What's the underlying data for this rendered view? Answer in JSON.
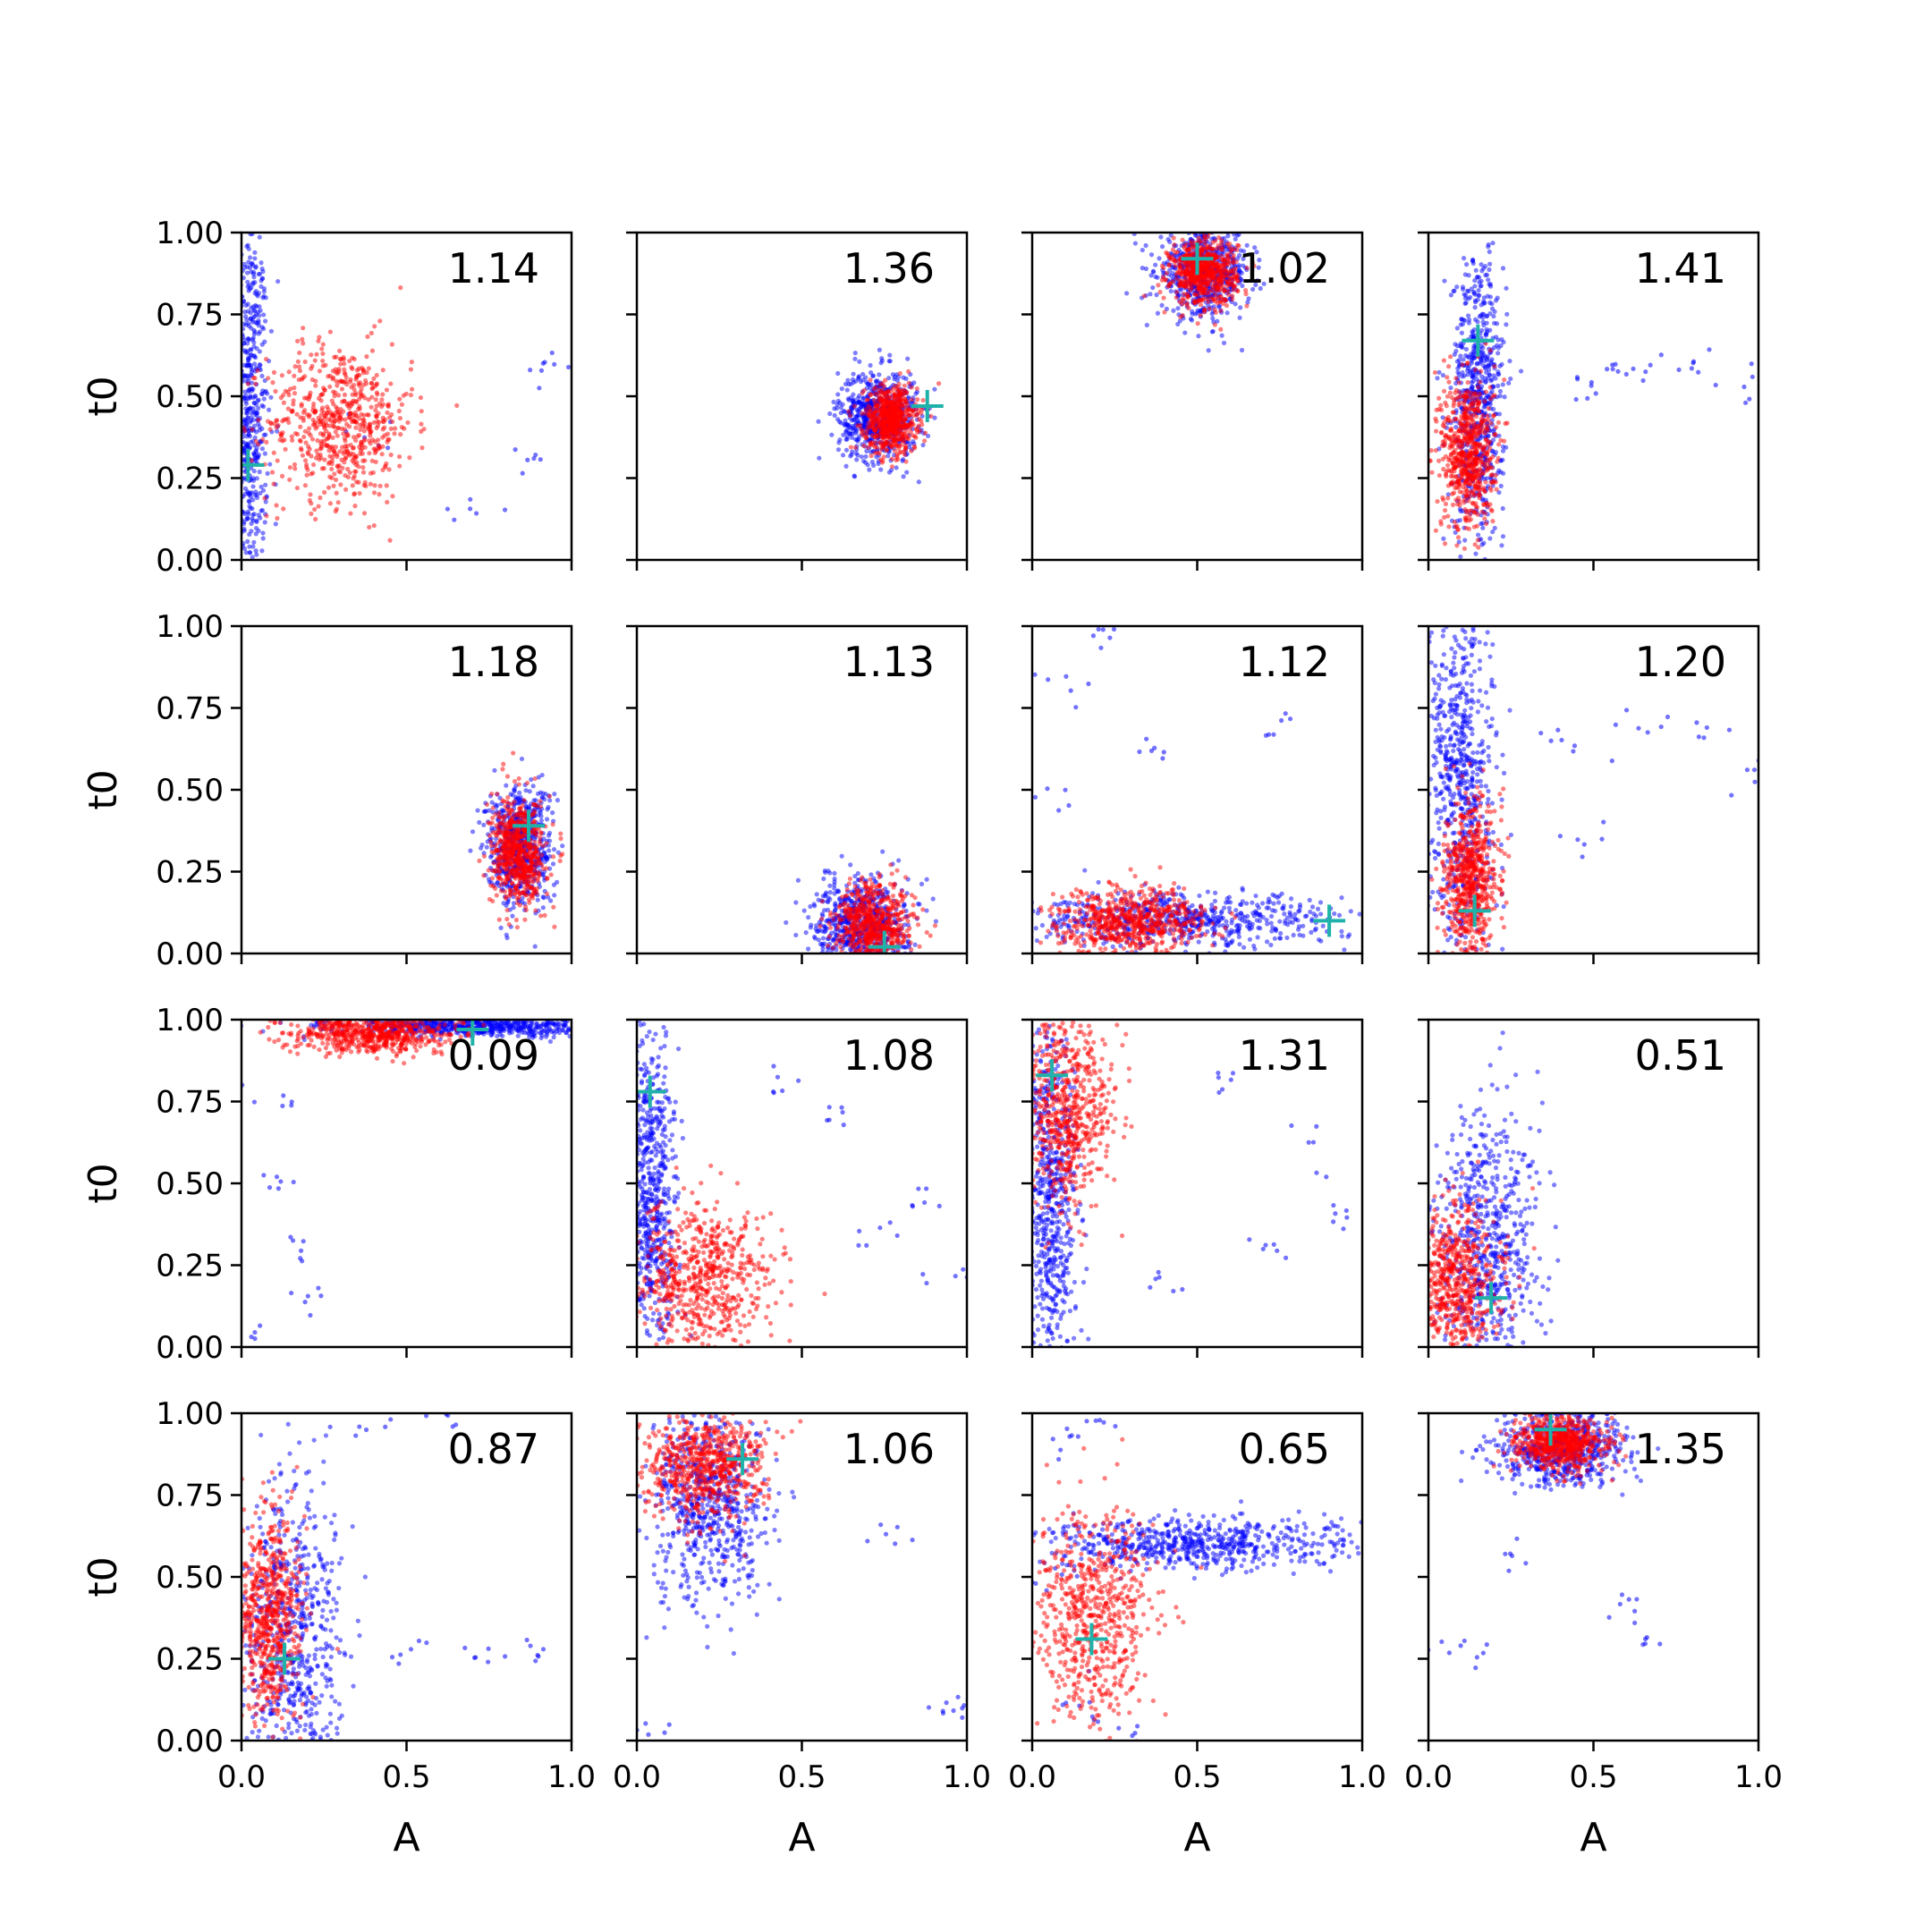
{
  "figure": {
    "xlabel": "A",
    "ylabel": "t0",
    "xlim": [
      0,
      1
    ],
    "ylim": [
      0,
      1
    ],
    "x_ticks": [
      "0.0",
      "0.5",
      "1.0"
    ],
    "x_tick_values": [
      0,
      0.5,
      1
    ],
    "y_ticks": [
      "0.00",
      "0.25",
      "0.50",
      "0.75",
      "1.00"
    ],
    "y_tick_values": [
      0,
      0.25,
      0.5,
      0.75,
      1
    ],
    "colors": {
      "series_blue": "#0000ff",
      "series_red": "#ff0000",
      "marker": "#20b2aa",
      "axes": "#000000"
    }
  },
  "chart_data": [
    {
      "type": "scatter",
      "row": 0,
      "col": 0,
      "value_label": "1.14",
      "marker": [
        0.02,
        0.29
      ],
      "blue": {
        "cx": 0.02,
        "cy": 0.45,
        "sx": 0.03,
        "sy": 0.3,
        "tail": [
          [
            0.4,
            0.4
          ],
          [
            0.92,
            0.6
          ],
          [
            0.7,
            0.15
          ],
          [
            0.98,
            0.55
          ],
          [
            0.85,
            0.3
          ]
        ]
      },
      "red": {
        "cx": 0.3,
        "cy": 0.42,
        "sx": 0.11,
        "sy": 0.12
      }
    },
    {
      "type": "scatter",
      "row": 0,
      "col": 1,
      "value_label": "1.36",
      "marker": [
        0.88,
        0.47
      ],
      "blue": {
        "cx": 0.73,
        "cy": 0.44,
        "sx": 0.06,
        "sy": 0.07,
        "tail": []
      },
      "red": {
        "cx": 0.77,
        "cy": 0.43,
        "sx": 0.04,
        "sy": 0.05
      }
    },
    {
      "type": "scatter",
      "row": 0,
      "col": 2,
      "value_label": "1.02",
      "marker": [
        0.5,
        0.92
      ],
      "blue": {
        "cx": 0.52,
        "cy": 0.88,
        "sx": 0.07,
        "sy": 0.07,
        "tail": []
      },
      "red": {
        "cx": 0.52,
        "cy": 0.88,
        "sx": 0.05,
        "sy": 0.05
      }
    },
    {
      "type": "scatter",
      "row": 0,
      "col": 3,
      "value_label": "1.41",
      "marker": [
        0.15,
        0.67
      ],
      "blue": {
        "cx": 0.15,
        "cy": 0.5,
        "sx": 0.04,
        "sy": 0.22,
        "tail": [
          [
            0.55,
            0.57
          ],
          [
            0.65,
            0.6
          ],
          [
            0.82,
            0.58
          ],
          [
            0.95,
            0.5
          ],
          [
            0.45,
            0.52
          ]
        ]
      },
      "red": {
        "cx": 0.12,
        "cy": 0.33,
        "sx": 0.04,
        "sy": 0.12
      }
    },
    {
      "type": "scatter",
      "row": 1,
      "col": 0,
      "value_label": "1.18",
      "marker": [
        0.87,
        0.39
      ],
      "blue": {
        "cx": 0.84,
        "cy": 0.33,
        "sx": 0.05,
        "sy": 0.09,
        "tail": []
      },
      "red": {
        "cx": 0.84,
        "cy": 0.31,
        "sx": 0.04,
        "sy": 0.08
      }
    },
    {
      "type": "scatter",
      "row": 1,
      "col": 1,
      "value_label": "1.13",
      "marker": [
        0.75,
        0.02
      ],
      "blue": {
        "cx": 0.68,
        "cy": 0.09,
        "sx": 0.07,
        "sy": 0.07,
        "tail": []
      },
      "red": {
        "cx": 0.72,
        "cy": 0.08,
        "sx": 0.06,
        "sy": 0.07
      }
    },
    {
      "type": "scatter",
      "row": 1,
      "col": 2,
      "value_label": "1.12",
      "marker": [
        0.9,
        0.1
      ],
      "blue": {
        "cx": 0.45,
        "cy": 0.1,
        "sx": 0.25,
        "sy": 0.04,
        "tail": [
          [
            0.1,
            0.8
          ],
          [
            0.2,
            0.95
          ],
          [
            0.35,
            0.6
          ],
          [
            0.75,
            0.7
          ],
          [
            0.05,
            0.45
          ]
        ]
      },
      "red": {
        "cx": 0.3,
        "cy": 0.1,
        "sx": 0.11,
        "sy": 0.05
      }
    },
    {
      "type": "scatter",
      "row": 1,
      "col": 3,
      "value_label": "1.20",
      "marker": [
        0.14,
        0.13
      ],
      "blue": {
        "cx": 0.1,
        "cy": 0.55,
        "sx": 0.05,
        "sy": 0.28,
        "tail": [
          [
            0.4,
            0.65
          ],
          [
            0.6,
            0.7
          ],
          [
            0.85,
            0.68
          ],
          [
            0.98,
            0.55
          ],
          [
            0.5,
            0.35
          ]
        ]
      },
      "red": {
        "cx": 0.13,
        "cy": 0.22,
        "sx": 0.04,
        "sy": 0.12
      }
    },
    {
      "type": "scatter",
      "row": 2,
      "col": 0,
      "value_label": "0.09",
      "marker": [
        0.7,
        0.97
      ],
      "blue": {
        "cx": 0.7,
        "cy": 0.98,
        "sx": 0.2,
        "sy": 0.015,
        "tail": [
          [
            0.12,
            0.5
          ],
          [
            0.15,
            0.3
          ],
          [
            0.08,
            0.75
          ],
          [
            0.2,
            0.15
          ],
          [
            0.05,
            0.02
          ]
        ]
      },
      "red": {
        "cx": 0.4,
        "cy": 0.96,
        "sx": 0.12,
        "sy": 0.03
      }
    },
    {
      "type": "scatter",
      "row": 2,
      "col": 1,
      "value_label": "1.08",
      "marker": [
        0.04,
        0.78
      ],
      "blue": {
        "cx": 0.04,
        "cy": 0.45,
        "sx": 0.04,
        "sy": 0.28,
        "tail": [
          [
            0.6,
            0.7
          ],
          [
            0.85,
            0.45
          ],
          [
            0.95,
            0.22
          ],
          [
            0.7,
            0.35
          ],
          [
            0.45,
            0.8
          ]
        ]
      },
      "red": {
        "cx": 0.2,
        "cy": 0.2,
        "sx": 0.11,
        "sy": 0.12
      }
    },
    {
      "type": "scatter",
      "row": 2,
      "col": 2,
      "value_label": "1.31",
      "marker": [
        0.06,
        0.83
      ],
      "blue": {
        "cx": 0.06,
        "cy": 0.45,
        "sx": 0.04,
        "sy": 0.3,
        "tail": [
          [
            0.6,
            0.8
          ],
          [
            0.85,
            0.6
          ],
          [
            0.95,
            0.4
          ],
          [
            0.4,
            0.2
          ],
          [
            0.7,
            0.3
          ]
        ]
      },
      "red": {
        "cx": 0.1,
        "cy": 0.72,
        "sx": 0.07,
        "sy": 0.14
      }
    },
    {
      "type": "scatter",
      "row": 2,
      "col": 3,
      "value_label": "0.51",
      "marker": [
        0.19,
        0.15
      ],
      "blue": {
        "cx": 0.18,
        "cy": 0.3,
        "sx": 0.08,
        "sy": 0.22,
        "tail": []
      },
      "red": {
        "cx": 0.08,
        "cy": 0.2,
        "sx": 0.07,
        "sy": 0.12
      }
    },
    {
      "type": "scatter",
      "row": 3,
      "col": 0,
      "value_label": "0.87",
      "marker": [
        0.13,
        0.25
      ],
      "blue": {
        "cx": 0.15,
        "cy": 0.3,
        "sx": 0.08,
        "sy": 0.25,
        "tail": [
          [
            0.5,
            0.27
          ],
          [
            0.75,
            0.26
          ],
          [
            0.9,
            0.26
          ],
          [
            0.6,
            0.97
          ],
          [
            0.35,
            0.97
          ]
        ]
      },
      "red": {
        "cx": 0.08,
        "cy": 0.38,
        "sx": 0.05,
        "sy": 0.16
      }
    },
    {
      "type": "scatter",
      "row": 3,
      "col": 1,
      "value_label": "1.06",
      "marker": [
        0.32,
        0.86
      ],
      "blue": {
        "cx": 0.22,
        "cy": 0.72,
        "sx": 0.09,
        "sy": 0.16,
        "tail": [
          [
            0.95,
            0.08
          ],
          [
            0.98,
            0.1
          ],
          [
            0.75,
            0.6
          ],
          [
            0.05,
            0.02
          ]
        ]
      },
      "red": {
        "cx": 0.2,
        "cy": 0.83,
        "sx": 0.09,
        "sy": 0.08
      }
    },
    {
      "type": "scatter",
      "row": 3,
      "col": 2,
      "value_label": "0.65",
      "marker": [
        0.18,
        0.31
      ],
      "blue": {
        "cx": 0.5,
        "cy": 0.6,
        "sx": 0.25,
        "sy": 0.04,
        "tail": [
          [
            0.1,
            0.9
          ],
          [
            0.2,
            0.95
          ],
          [
            0.15,
            0.1
          ],
          [
            0.05,
            0.5
          ],
          [
            0.25,
            0.05
          ]
        ]
      },
      "red": {
        "cx": 0.18,
        "cy": 0.38,
        "sx": 0.09,
        "sy": 0.17
      }
    },
    {
      "type": "scatter",
      "row": 3,
      "col": 3,
      "value_label": "1.35",
      "marker": [
        0.37,
        0.95
      ],
      "blue": {
        "cx": 0.4,
        "cy": 0.9,
        "sx": 0.1,
        "sy": 0.06,
        "tail": [
          [
            0.65,
            0.33
          ],
          [
            0.6,
            0.42
          ],
          [
            0.15,
            0.27
          ],
          [
            0.02,
            0.3
          ],
          [
            0.25,
            0.55
          ]
        ]
      },
      "red": {
        "cx": 0.4,
        "cy": 0.91,
        "sx": 0.07,
        "sy": 0.04
      }
    }
  ]
}
